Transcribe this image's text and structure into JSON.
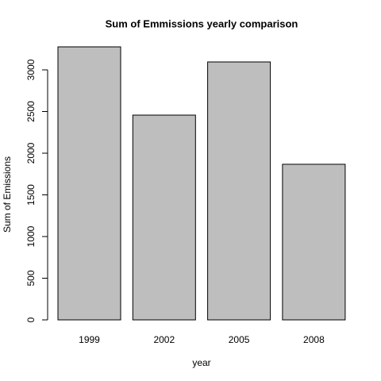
{
  "chart_data": {
    "type": "bar",
    "title": "Sum of Emmissions yearly comparison",
    "xlabel": "year",
    "ylabel": "Sum of Emissions",
    "categories": [
      "1999",
      "2002",
      "2005",
      "2008"
    ],
    "values": [
      3276,
      2457,
      3095,
      1867
    ],
    "color": "#bebebe",
    "ylim": [
      0,
      3300
    ],
    "yticks": [
      0,
      500,
      1000,
      1500,
      2000,
      2500,
      3000
    ],
    "grid": false
  }
}
